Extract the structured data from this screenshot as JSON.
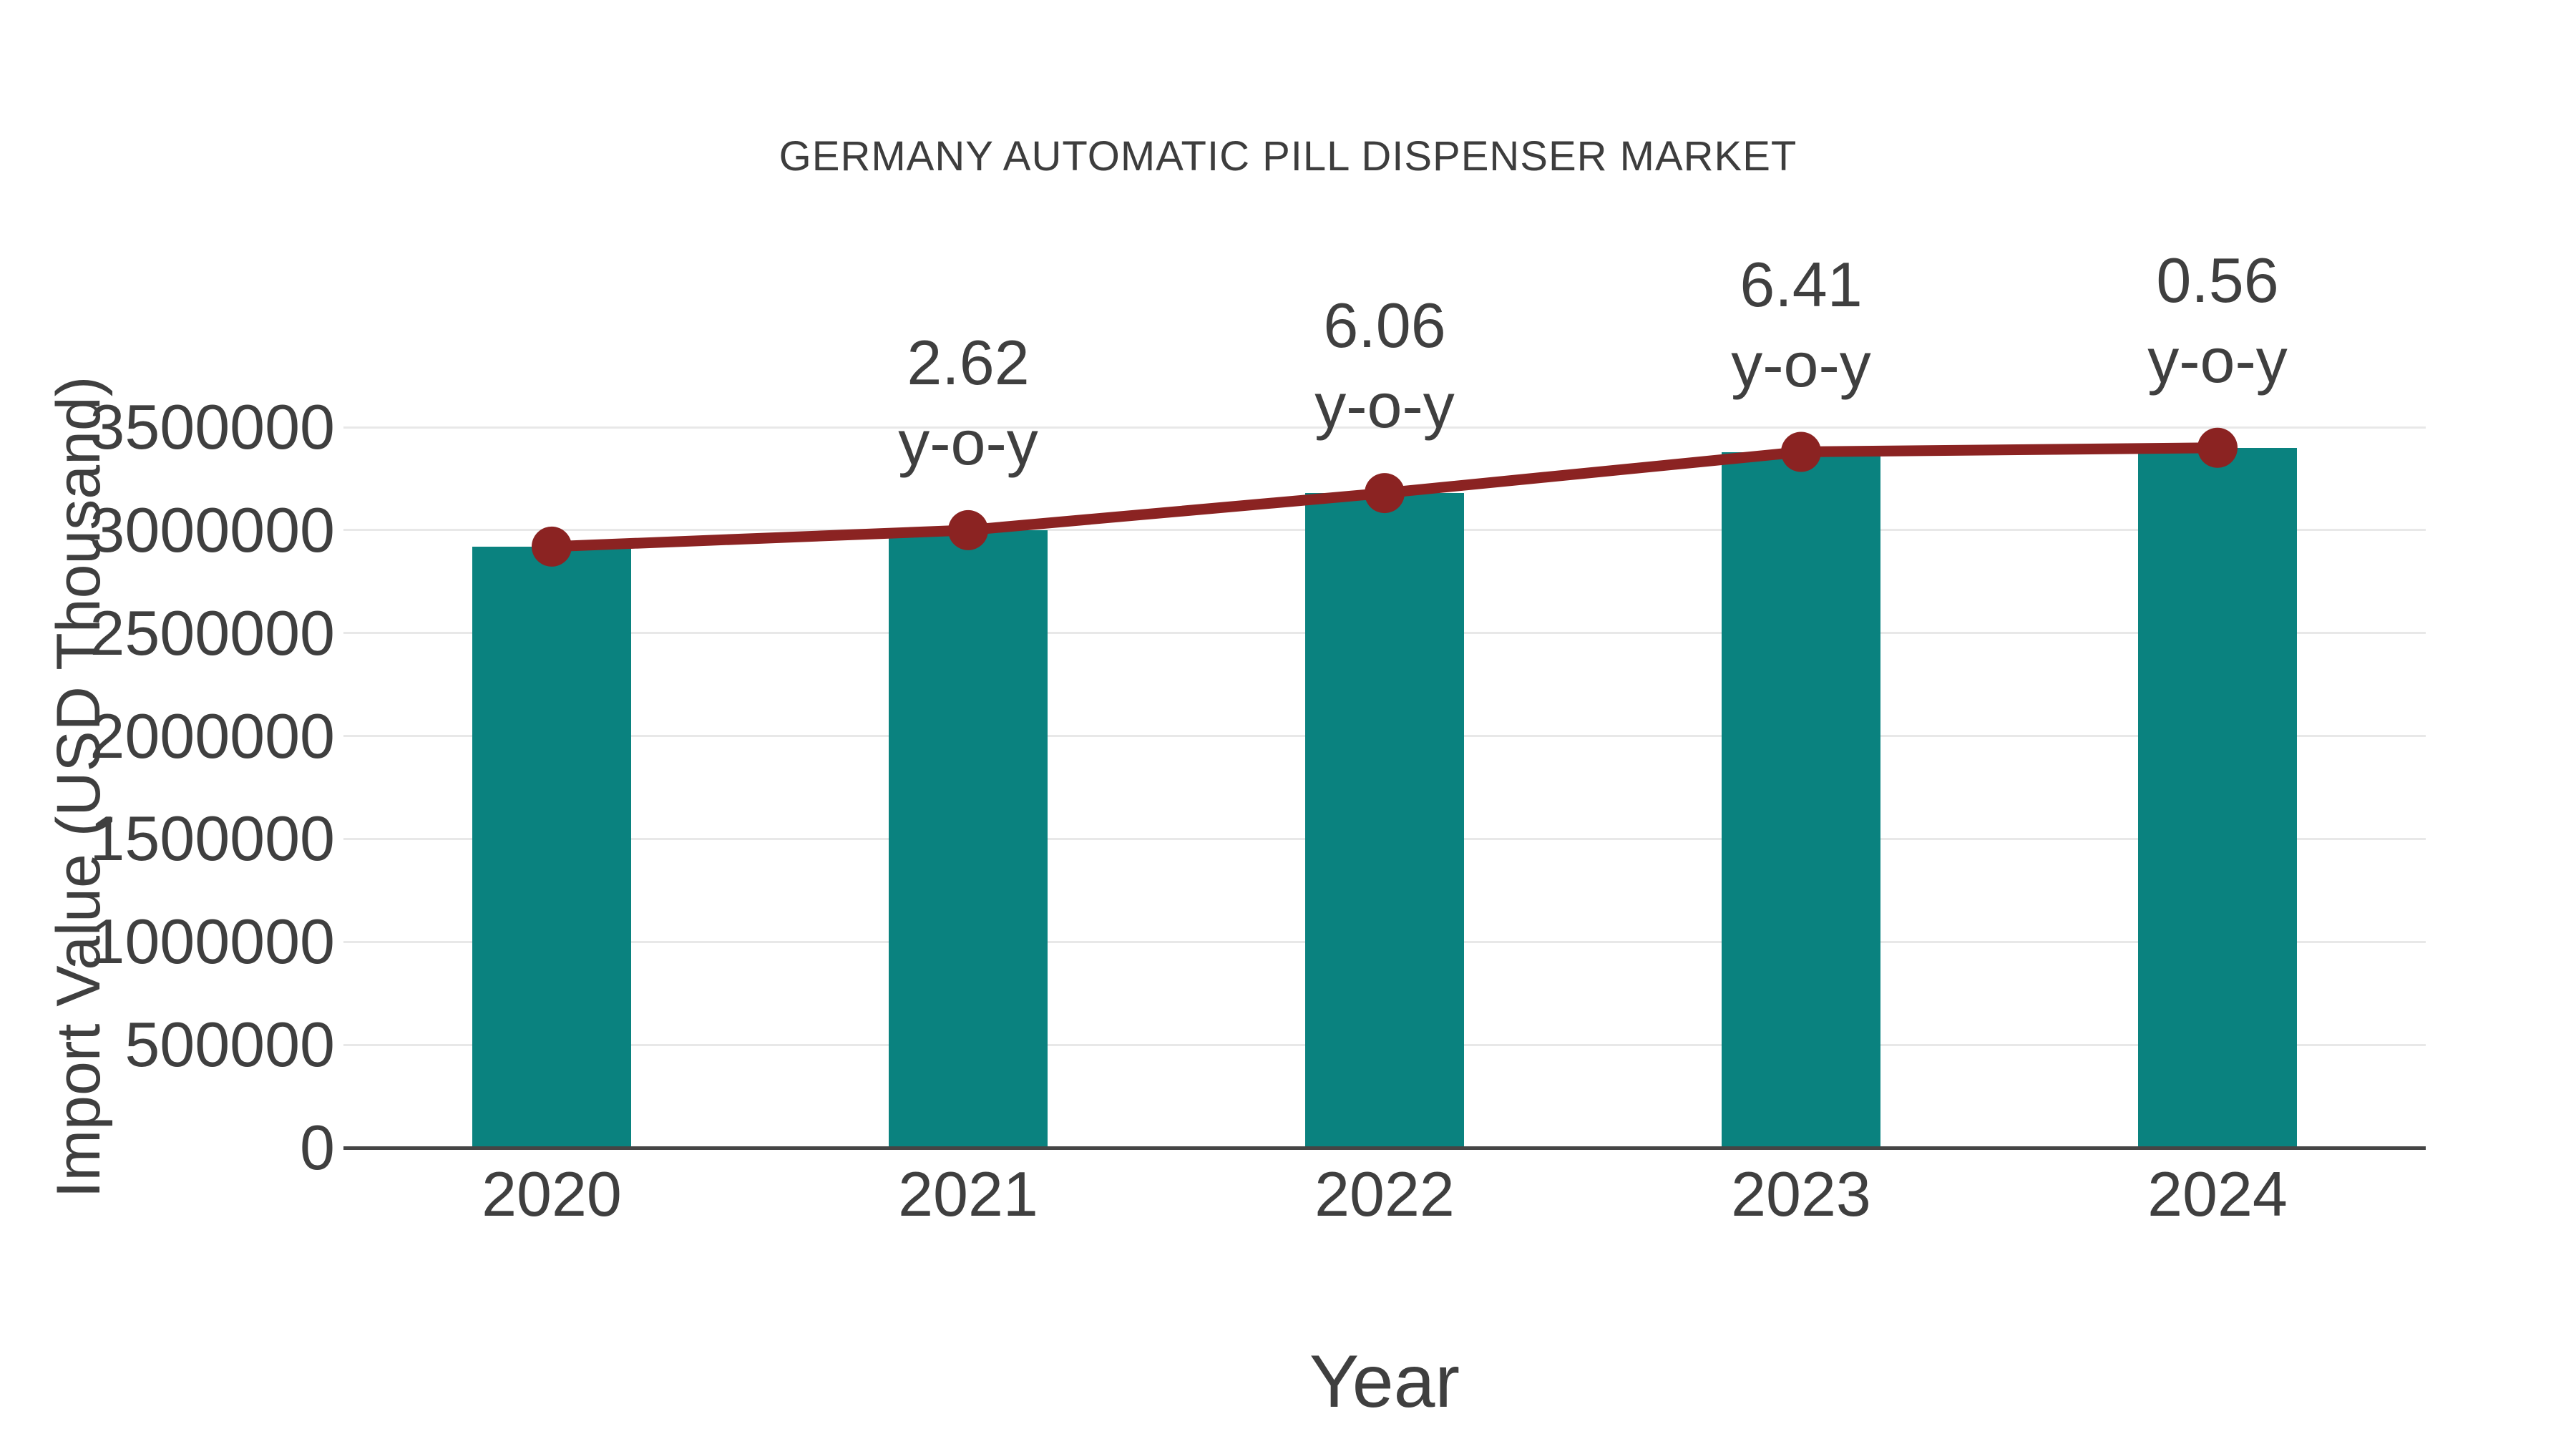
{
  "title": "GERMANY AUTOMATIC PILL DISPENSER MARKET",
  "axes": {
    "x_label": "Year",
    "y_label": "Import Value (USD Thousand)"
  },
  "chart_data": {
    "type": "bar",
    "title": "GERMANY AUTOMATIC PILL DISPENSER MARKET",
    "xlabel": "Year",
    "ylabel": "Import Value (USD Thousand)",
    "categories": [
      "2020",
      "2021",
      "2022",
      "2023",
      "2024"
    ],
    "series": [
      {
        "name": "Import Value (USD Thousand)",
        "type": "bar",
        "values": [
          2920000,
          3000000,
          3180000,
          3380000,
          3400000
        ]
      },
      {
        "name": "Trend line with markers",
        "type": "line",
        "values": [
          2920000,
          3000000,
          3180000,
          3380000,
          3400000
        ]
      }
    ],
    "annotations": [
      {
        "category": "2021",
        "value": "2.62",
        "suffix": "y-o-y"
      },
      {
        "category": "2022",
        "value": "6.06",
        "suffix": "y-o-y"
      },
      {
        "category": "2023",
        "value": "6.41",
        "suffix": "y-o-y"
      },
      {
        "category": "2024",
        "value": "0.56",
        "suffix": "y-o-y"
      }
    ],
    "ylim": [
      0,
      3500000
    ],
    "yticks": [
      0,
      500000,
      1000000,
      1500000,
      2000000,
      2500000,
      3000000,
      3500000
    ],
    "grid": true,
    "legend_position": "none",
    "colors": {
      "bar": "#0a827f",
      "line": "#8b2322",
      "text": "#3f3f3f",
      "grid": "#e8e8e8",
      "axis": "#454545",
      "background": "#ffffff"
    }
  }
}
